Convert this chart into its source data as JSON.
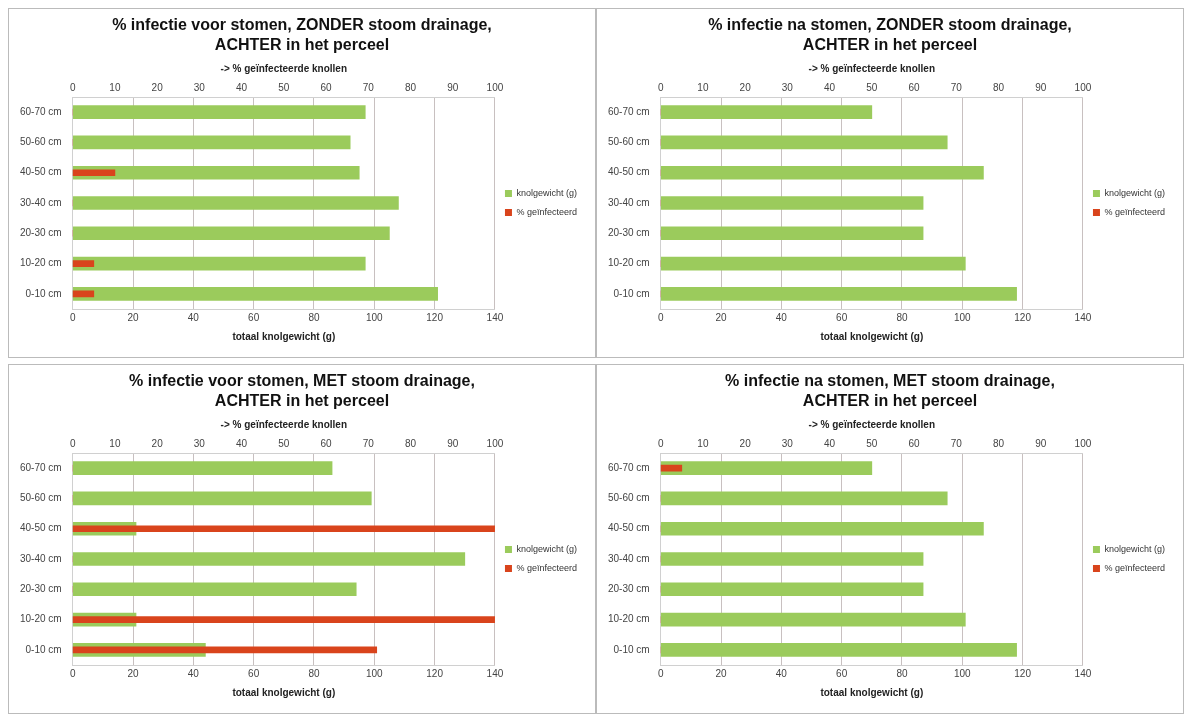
{
  "chart_data": [
    {
      "type": "bar",
      "orientation": "horizontal",
      "title": "% infectie voor stomen, ZONDER stoom drainage, ACHTER in het perceel",
      "xlabel": "totaal knolgewicht (g)",
      "x2label": "-> % geïnfecteerde knollen",
      "categories": [
        "60-70 cm",
        "50-60 cm",
        "40-50 cm",
        "30-40 cm",
        "20-30 cm",
        "10-20 cm",
        "0-10 cm"
      ],
      "xlim": [
        0,
        140
      ],
      "xticks": [
        0,
        20,
        40,
        60,
        80,
        100,
        120,
        140
      ],
      "x2lim": [
        0,
        100
      ],
      "x2ticks": [
        0,
        10,
        20,
        30,
        40,
        50,
        60,
        70,
        80,
        90,
        100
      ],
      "grid": "x",
      "legend": "right",
      "series": [
        {
          "name": "knolgewicht (g)",
          "color": "#9bcb5c",
          "values": [
            97,
            92,
            95,
            108,
            105,
            97,
            121
          ]
        },
        {
          "name": "% geïnfecteerd",
          "color": "#d9441c",
          "axis": "x2",
          "values": [
            0,
            0,
            10,
            0,
            0,
            5,
            5
          ]
        }
      ]
    },
    {
      "type": "bar",
      "orientation": "horizontal",
      "title": "% infectie na stomen, ZONDER stoom drainage, ACHTER in het perceel",
      "xlabel": "totaal knolgewicht (g)",
      "x2label": "-> % geïnfecteerde knollen",
      "categories": [
        "60-70 cm",
        "50-60 cm",
        "40-50 cm",
        "30-40 cm",
        "20-30 cm",
        "10-20 cm",
        "0-10 cm"
      ],
      "xlim": [
        0,
        140
      ],
      "xticks": [
        0,
        20,
        40,
        60,
        80,
        100,
        120,
        140
      ],
      "x2lim": [
        0,
        100
      ],
      "x2ticks": [
        0,
        10,
        20,
        30,
        40,
        50,
        60,
        70,
        80,
        90,
        100
      ],
      "grid": "x",
      "legend": "right",
      "series": [
        {
          "name": "knolgewicht (g)",
          "color": "#9bcb5c",
          "values": [
            70,
            95,
            107,
            87,
            87,
            101,
            118
          ]
        },
        {
          "name": "% geïnfecteerd",
          "color": "#d9441c",
          "axis": "x2",
          "values": [
            0,
            0,
            0,
            0,
            0,
            0,
            0
          ]
        }
      ]
    },
    {
      "type": "bar",
      "orientation": "horizontal",
      "title": "% infectie voor stomen, MET stoom drainage, ACHTER in het perceel",
      "xlabel": "totaal knolgewicht (g)",
      "x2label": "-> % geïnfecteerde knollen",
      "categories": [
        "60-70 cm",
        "50-60 cm",
        "40-50 cm",
        "30-40 cm",
        "20-30 cm",
        "10-20 cm",
        "0-10 cm"
      ],
      "xlim": [
        0,
        140
      ],
      "xticks": [
        0,
        20,
        40,
        60,
        80,
        100,
        120,
        140
      ],
      "x2lim": [
        0,
        100
      ],
      "x2ticks": [
        0,
        10,
        20,
        30,
        40,
        50,
        60,
        70,
        80,
        90,
        100
      ],
      "grid": "x",
      "legend": "right",
      "series": [
        {
          "name": "knolgewicht (g)",
          "color": "#9bcb5c",
          "values": [
            86,
            99,
            21,
            130,
            94,
            21,
            44
          ]
        },
        {
          "name": "% geïnfecteerd",
          "color": "#d9441c",
          "axis": "x2",
          "values": [
            0,
            0,
            100,
            0,
            0,
            100,
            72
          ]
        }
      ]
    },
    {
      "type": "bar",
      "orientation": "horizontal",
      "title": "% infectie na stomen, MET stoom drainage, ACHTER in het perceel",
      "xlabel": "totaal knolgewicht (g)",
      "x2label": "-> % geïnfecteerde knollen",
      "categories": [
        "60-70 cm",
        "50-60 cm",
        "40-50 cm",
        "30-40 cm",
        "20-30 cm",
        "10-20 cm",
        "0-10 cm"
      ],
      "xlim": [
        0,
        140
      ],
      "xticks": [
        0,
        20,
        40,
        60,
        80,
        100,
        120,
        140
      ],
      "x2lim": [
        0,
        100
      ],
      "x2ticks": [
        0,
        10,
        20,
        30,
        40,
        50,
        60,
        70,
        80,
        90,
        100
      ],
      "grid": "x",
      "legend": "right",
      "series": [
        {
          "name": "knolgewicht (g)",
          "color": "#9bcb5c",
          "values": [
            70,
            95,
            107,
            87,
            87,
            101,
            118
          ]
        },
        {
          "name": "% geïnfecteerd",
          "color": "#d9441c",
          "axis": "x2",
          "values": [
            5,
            0,
            0,
            0,
            0,
            0,
            0
          ]
        }
      ]
    }
  ]
}
